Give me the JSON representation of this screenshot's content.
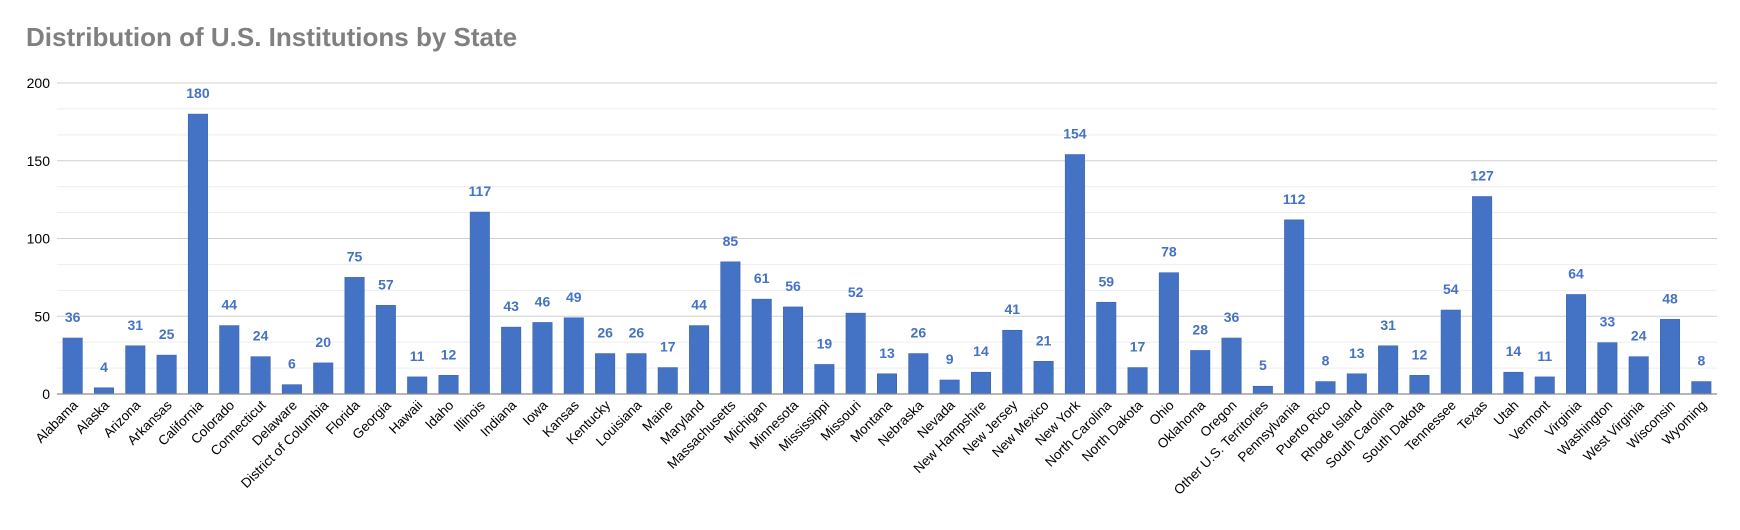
{
  "chart_data": {
    "type": "bar",
    "title": "Distribution of U.S. Institutions by State",
    "xlabel": "",
    "ylabel": "",
    "ylim": [
      0,
      200
    ],
    "yticks": [
      0,
      50,
      100,
      150,
      200
    ],
    "grid": true,
    "legend": "none",
    "bar_color": "#4472C4",
    "label_color": "#4472C4",
    "categories": [
      "Alabama",
      "Alaska",
      "Arizona",
      "Arkansas",
      "California",
      "Colorado",
      "Connecticut",
      "Delaware",
      "District of Columbia",
      "Florida",
      "Georgia",
      "Hawaii",
      "Idaho",
      "Illinois",
      "Indiana",
      "Iowa",
      "Kansas",
      "Kentucky",
      "Louisiana",
      "Maine",
      "Maryland",
      "Massachusetts",
      "Michigan",
      "Minnesota",
      "Mississippi",
      "Missouri",
      "Montana",
      "Nebraska",
      "Nevada",
      "New Hampshire",
      "New Jersey",
      "New Mexico",
      "New York",
      "North Carolina",
      "North Dakota",
      "Ohio",
      "Oklahoma",
      "Oregon",
      "Other U.S. Territories",
      "Pennsylvania",
      "Puerto Rico",
      "Rhode Island",
      "South Carolina",
      "South Dakota",
      "Tennessee",
      "Texas",
      "Utah",
      "Vermont",
      "Virginia",
      "Washington",
      "West Virginia",
      "Wisconsin",
      "Wyoming"
    ],
    "values": [
      36,
      4,
      31,
      25,
      180,
      44,
      24,
      6,
      20,
      75,
      57,
      11,
      12,
      117,
      43,
      46,
      49,
      26,
      26,
      17,
      44,
      85,
      61,
      56,
      19,
      52,
      13,
      26,
      9,
      14,
      41,
      21,
      154,
      59,
      17,
      78,
      28,
      36,
      5,
      112,
      8,
      13,
      31,
      12,
      54,
      127,
      14,
      11,
      64,
      33,
      24,
      48,
      8
    ]
  }
}
